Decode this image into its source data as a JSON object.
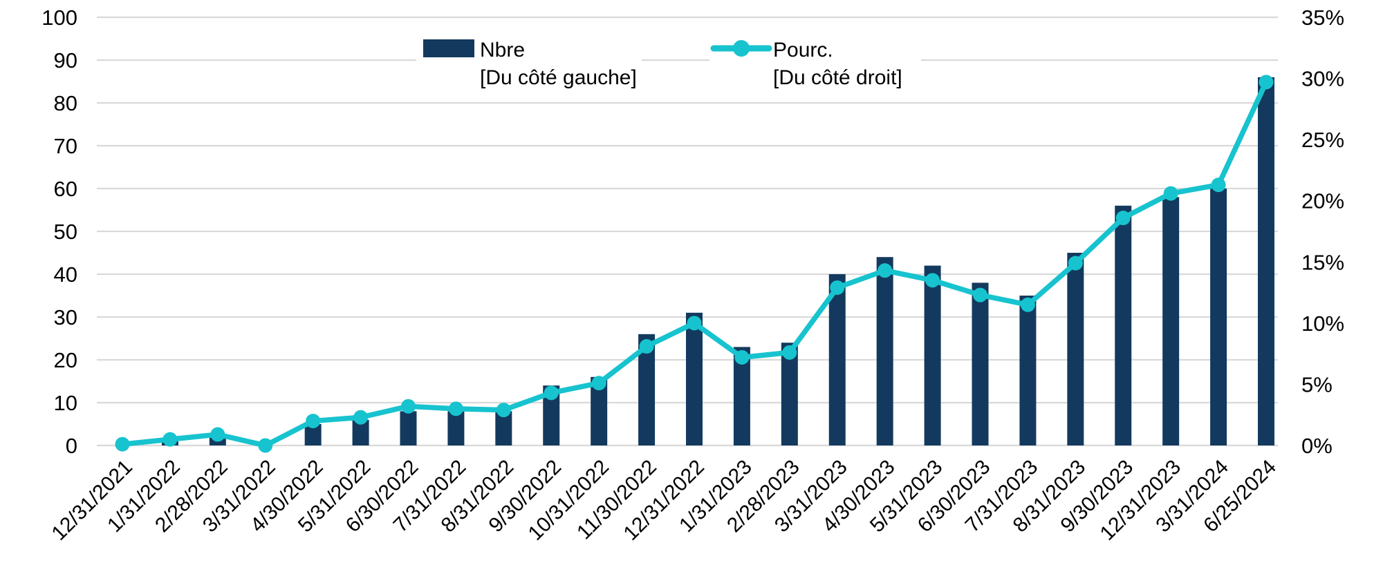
{
  "chart_data": {
    "type": "combo-bar-line",
    "title": "",
    "categories": [
      "12/31/2021",
      "1/31/2022",
      "2/28/2022",
      "3/31/2022",
      "4/30/2022",
      "5/31/2022",
      "6/30/2022",
      "7/31/2022",
      "8/31/2022",
      "9/30/2022",
      "10/31/2022",
      "11/30/2022",
      "12/31/2022",
      "1/31/2023",
      "2/28/2023",
      "3/31/2023",
      "4/30/2023",
      "5/31/2023",
      "6/30/2023",
      "7/31/2023",
      "8/31/2023",
      "9/30/2023",
      "12/31/2023",
      "3/31/2024",
      "6/25/2024"
    ],
    "series": [
      {
        "name": "Nbre",
        "axis_note": "[Du côté gauche]",
        "type": "bar",
        "axis": "left",
        "color": "#133A5E",
        "values": [
          0,
          1,
          2,
          0,
          5,
          6,
          8,
          8,
          8,
          14,
          16,
          26,
          31,
          23,
          24,
          40,
          44,
          42,
          38,
          35,
          45,
          56,
          58,
          60,
          86
        ]
      },
      {
        "name": "Pourc.",
        "axis_note": "[Du côté droit]",
        "type": "line",
        "axis": "right",
        "color": "#17C3CE",
        "values": [
          0.1,
          0.5,
          0.9,
          0.0,
          2.0,
          2.3,
          3.2,
          3.0,
          2.9,
          4.3,
          5.1,
          8.1,
          10.0,
          7.2,
          7.6,
          12.9,
          14.3,
          13.5,
          12.3,
          11.5,
          14.9,
          18.6,
          20.6,
          21.3,
          29.7
        ]
      }
    ],
    "left_axis": {
      "min": 0,
      "max": 100,
      "ticks": [
        0,
        10,
        20,
        30,
        40,
        50,
        60,
        70,
        80,
        90,
        100
      ]
    },
    "right_axis": {
      "min": 0,
      "max": 35,
      "ticks": [
        "0%",
        "5%",
        "10%",
        "15%",
        "20%",
        "25%",
        "30%",
        "35%"
      ],
      "tick_values": [
        0,
        5,
        10,
        15,
        20,
        25,
        30,
        35
      ]
    },
    "grid": true,
    "gridline_color": "#D9D9D9",
    "background": "#FFFFFF",
    "text_color": "#000000",
    "legend_position": "top-center"
  }
}
